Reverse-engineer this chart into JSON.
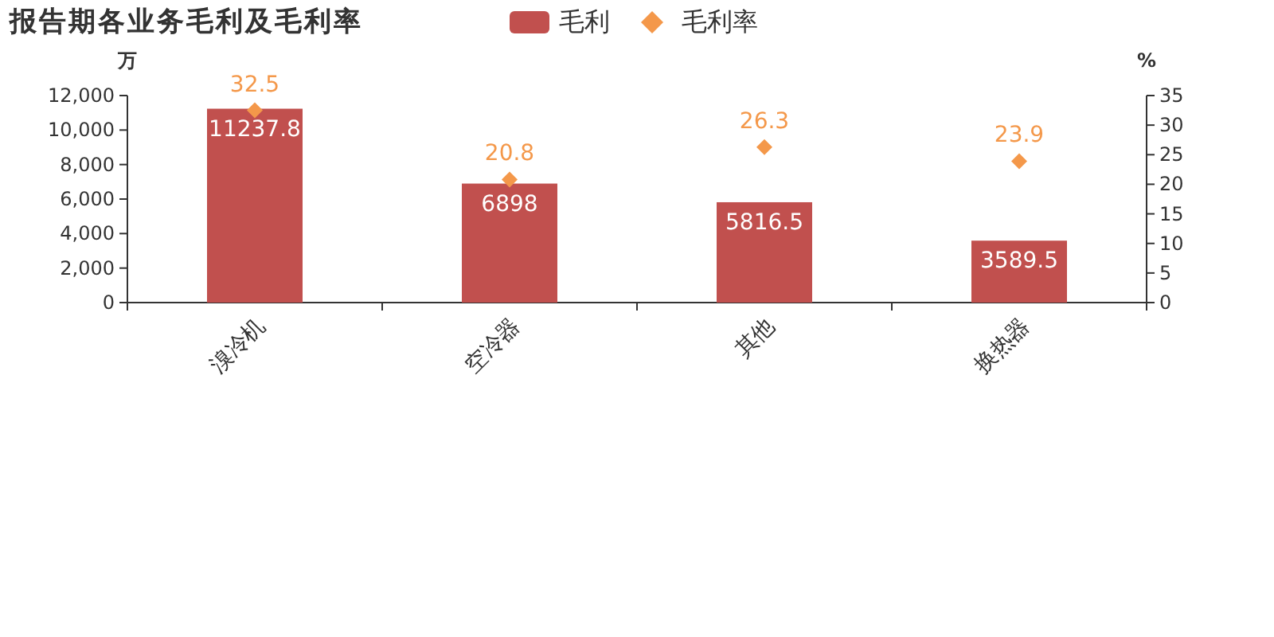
{
  "chart_data": {
    "type": "bar",
    "title": "报告期各业务毛利及毛利率",
    "categories": [
      "溴冷机",
      "空冷器",
      "其他",
      "换热器"
    ],
    "series": [
      {
        "name": "毛利",
        "color": "#c1504e",
        "values": [
          11237.8,
          6898,
          5816.5,
          3589.5
        ]
      },
      {
        "name": "毛利率",
        "type": "scatter",
        "axis": "y2",
        "color": "#f4984a",
        "marker": "diamond",
        "values": [
          32.5,
          20.8,
          26.3,
          23.9
        ]
      }
    ],
    "ylabel": "万",
    "y2label": "%",
    "ylim": [
      0,
      12000
    ],
    "yticks": [
      0,
      {
        "value": 2000,
        "label": "2,000"
      },
      {
        "value": 4000,
        "label": "4,000"
      },
      {
        "value": 6000,
        "label": "6,000"
      },
      {
        "value": 8000,
        "label": "8,000"
      },
      {
        "value": 10000,
        "label": "10,000"
      },
      {
        "value": 12000,
        "label": "12,000"
      }
    ],
    "y2lim": [
      0,
      35
    ],
    "y2ticks": [
      0,
      5,
      10,
      15,
      20,
      25,
      30,
      35
    ],
    "data_labels": true,
    "legend": "top",
    "grid": false
  }
}
